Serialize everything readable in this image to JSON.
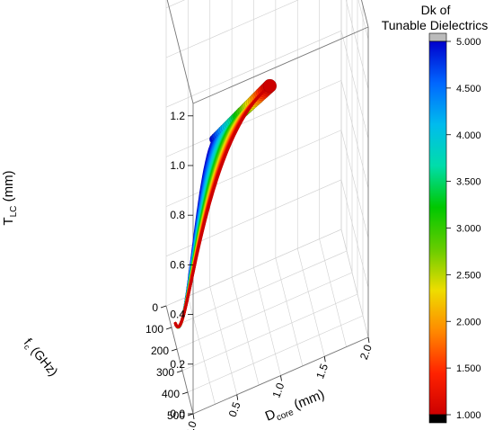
{
  "chart_data": {
    "type": "scatter",
    "projection": "3d",
    "axes": {
      "x": {
        "label_main": "D",
        "label_sub": "core",
        "label_unit": " (mm)",
        "range": [
          0,
          2.0
        ],
        "ticks": [
          "0.0",
          "0.5",
          "1.0",
          "1.5",
          "2.0"
        ]
      },
      "y": {
        "label_main": "f",
        "label_sub": "c",
        "label_unit": " (GHz)",
        "range": [
          0,
          500
        ],
        "ticks": [
          "0",
          "100",
          "200",
          "300",
          "400",
          "500"
        ]
      },
      "z": {
        "label_main": "T",
        "label_sub": "LC",
        "label_unit": " (mm)",
        "range": [
          0,
          1.25
        ],
        "ticks": [
          "0.0",
          "0.2",
          "0.4",
          "0.6",
          "0.8",
          "1.0",
          "1.2"
        ]
      }
    },
    "grid": true,
    "colorbar": {
      "title_line1": "Dk of",
      "title_line2": "Tunable Dielectrics",
      "range": [
        1.0,
        5.0
      ],
      "ticks": [
        "1.000",
        "1.500",
        "2.000",
        "2.500",
        "3.000",
        "3.500",
        "4.000",
        "4.500",
        "5.000"
      ],
      "colormap": [
        "#cc0000",
        "#ff2200",
        "#ff8800",
        "#eedd00",
        "#66cc00",
        "#00c800",
        "#00ddaa",
        "#00bbee",
        "#0066ff",
        "#0000cc"
      ],
      "under_color": "#000000",
      "over_color": "#bbbbbb"
    },
    "series": {
      "dk_values": [
        1.0,
        1.125,
        1.25,
        1.375,
        1.5,
        1.625,
        1.75,
        1.875,
        2.0,
        2.125,
        2.25,
        2.375,
        2.5,
        2.625,
        2.75,
        2.875,
        3.0,
        3.125,
        3.25,
        3.375,
        3.5,
        3.625,
        3.75,
        3.875,
        4.0,
        4.125,
        4.25,
        4.375,
        4.5,
        4.625,
        4.75,
        4.875,
        5.0
      ],
      "end_point_low_dk": {
        "D_core_mm": 0.88,
        "f_c_GHz": 6,
        "T_LC_mm": 1.18
      },
      "end_point_high_dk": {
        "D_core_mm": 0.25,
        "f_c_GHz": 20,
        "T_LC_mm": 1.05
      },
      "start_point": {
        "D_core_mm": 0.05,
        "f_c_GHz": 410,
        "T_LC_mm": 0.0
      }
    }
  }
}
